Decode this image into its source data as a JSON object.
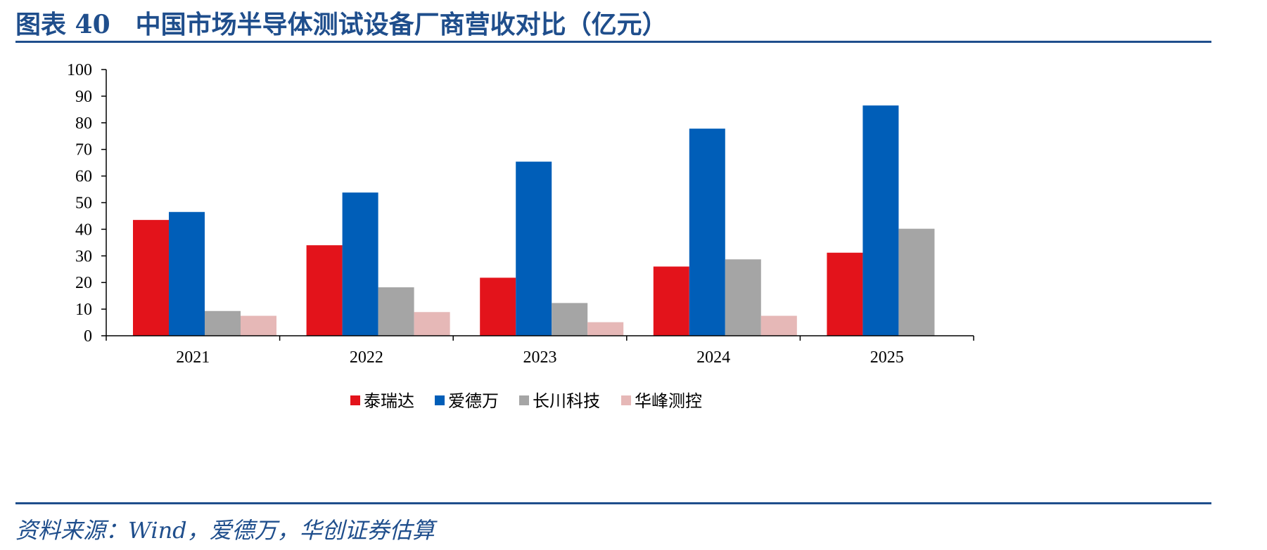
{
  "header": {
    "title": "图表 40　中国市场半导体测试设备厂商营收对比（亿元）"
  },
  "footer": {
    "source": "资料来源：Wind，爱德万，华创证券估算"
  },
  "chart_data": {
    "type": "bar",
    "title": "",
    "xlabel": "",
    "ylabel": "",
    "ylim": [
      0,
      100
    ],
    "yticks": [
      0,
      10,
      20,
      30,
      40,
      50,
      60,
      70,
      80,
      90,
      100
    ],
    "categories": [
      "2021",
      "2022",
      "2023",
      "2024",
      "2025"
    ],
    "legend_position": "bottom",
    "grid": false,
    "series": [
      {
        "name": "泰瑞达",
        "color": "#e3131b",
        "values": [
          43.5,
          34,
          21.8,
          26,
          31.2
        ]
      },
      {
        "name": "爱德万",
        "color": "#005eb8",
        "values": [
          46.5,
          53.8,
          65.4,
          77.8,
          86.5
        ]
      },
      {
        "name": "长川科技",
        "color": "#a5a5a5",
        "values": [
          9.3,
          18.2,
          12.3,
          28.7,
          40.2
        ]
      },
      {
        "name": "华峰测控",
        "color": "#e6b8b7",
        "values": [
          7.5,
          8.9,
          5.1,
          7.5,
          null
        ]
      }
    ]
  }
}
